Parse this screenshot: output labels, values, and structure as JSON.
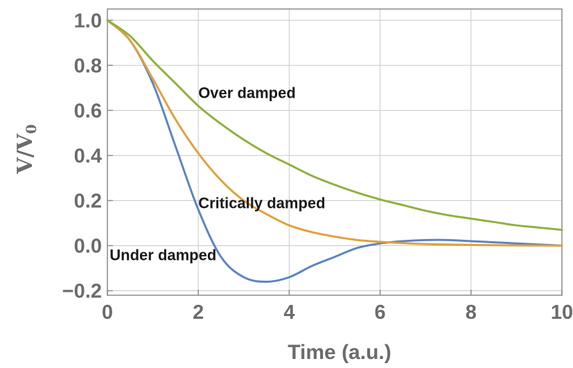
{
  "chart_data": {
    "type": "line",
    "title": "",
    "xlabel": "Time (a.u.)",
    "ylabel": {
      "main": "V/V",
      "subscript": "0"
    },
    "xlim": [
      0,
      10
    ],
    "ylim": [
      -0.22,
      1.05
    ],
    "x_ticks": [
      0,
      2,
      4,
      6,
      8,
      10
    ],
    "x_tick_labels": [
      "0",
      "2",
      "4",
      "6",
      "8",
      "10"
    ],
    "y_ticks": [
      -0.2,
      0.0,
      0.2,
      0.4,
      0.6,
      0.8,
      1.0
    ],
    "y_tick_labels": [
      "−0.2",
      "0.0",
      "0.2",
      "0.4",
      "0.6",
      "0.8",
      "1.0"
    ],
    "grid": true,
    "x": [
      0,
      0.5,
      1,
      1.5,
      2,
      2.5,
      3,
      3.5,
      4,
      4.5,
      5,
      5.5,
      6,
      6.5,
      7,
      7.5,
      8,
      8.5,
      9,
      9.5,
      10
    ],
    "series": [
      {
        "name": "Under damped",
        "color": "#5b84c4",
        "values": [
          1.0,
          0.91,
          0.72,
          0.44,
          0.16,
          -0.05,
          -0.14,
          -0.16,
          -0.14,
          -0.09,
          -0.05,
          -0.01,
          0.01,
          0.02,
          0.025,
          0.025,
          0.02,
          0.015,
          0.01,
          0.005,
          0.0
        ]
      },
      {
        "name": "Critically damped",
        "color": "#e2a03b",
        "values": [
          1.0,
          0.91,
          0.74,
          0.56,
          0.41,
          0.29,
          0.2,
          0.14,
          0.09,
          0.06,
          0.04,
          0.025,
          0.017,
          0.011,
          0.007,
          0.005,
          0.003,
          0.002,
          0.001,
          0.0005,
          0.0003
        ]
      },
      {
        "name": "Over damped",
        "color": "#8fb03e",
        "values": [
          1.0,
          0.93,
          0.82,
          0.72,
          0.62,
          0.54,
          0.47,
          0.41,
          0.36,
          0.31,
          0.27,
          0.235,
          0.205,
          0.18,
          0.155,
          0.135,
          0.12,
          0.105,
          0.09,
          0.08,
          0.07
        ]
      }
    ],
    "annotations": [
      {
        "text": "Over damped",
        "x": 2.0,
        "y": 0.68
      },
      {
        "text": "Critically damped",
        "x": 2.0,
        "y": 0.19
      },
      {
        "text": "Under damped",
        "x": 0.05,
        "y": -0.04
      }
    ]
  }
}
